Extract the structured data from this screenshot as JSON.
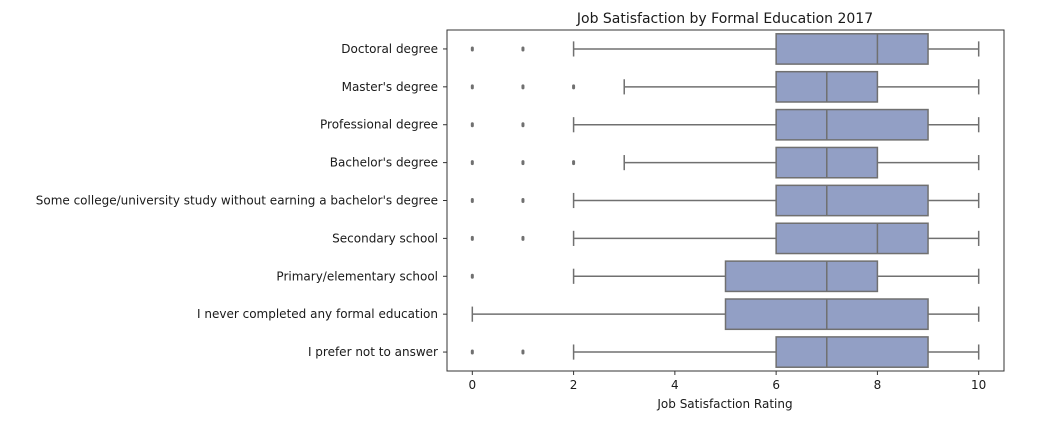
{
  "chart_data": {
    "type": "box",
    "title": "Job Satisfaction by Formal Education 2017",
    "xlabel": "Job Satisfaction Rating",
    "ylabel": "",
    "xlim": [
      -0.5,
      10.5
    ],
    "xticks": [
      0,
      2,
      4,
      6,
      8,
      10
    ],
    "grid": false,
    "colors": {
      "box": "#929fc5",
      "line": "#707070"
    },
    "categories": [
      "Doctoral degree",
      "Master's degree",
      "Professional degree",
      "Bachelor's degree",
      "Some college/university study without earning a bachelor's degree",
      "Secondary school",
      "Primary/elementary school",
      "I never completed any formal education",
      "I prefer not to answer"
    ],
    "boxes": [
      {
        "whisker_low": 2,
        "q1": 6,
        "median": 8,
        "q3": 9,
        "whisker_high": 10,
        "outliers": [
          0,
          1
        ]
      },
      {
        "whisker_low": 3,
        "q1": 6,
        "median": 7,
        "q3": 8,
        "whisker_high": 10,
        "outliers": [
          0,
          1,
          2
        ]
      },
      {
        "whisker_low": 2,
        "q1": 6,
        "median": 7,
        "q3": 9,
        "whisker_high": 10,
        "outliers": [
          0,
          1
        ]
      },
      {
        "whisker_low": 3,
        "q1": 6,
        "median": 7,
        "q3": 8,
        "whisker_high": 10,
        "outliers": [
          0,
          1,
          2
        ]
      },
      {
        "whisker_low": 2,
        "q1": 6,
        "median": 7,
        "q3": 9,
        "whisker_high": 10,
        "outliers": [
          0,
          1
        ]
      },
      {
        "whisker_low": 2,
        "q1": 6,
        "median": 8,
        "q3": 9,
        "whisker_high": 10,
        "outliers": [
          0,
          1
        ]
      },
      {
        "whisker_low": 2,
        "q1": 5,
        "median": 7,
        "q3": 8,
        "whisker_high": 10,
        "outliers": [
          0
        ]
      },
      {
        "whisker_low": 0,
        "q1": 5,
        "median": 7,
        "q3": 9,
        "whisker_high": 10,
        "outliers": []
      },
      {
        "whisker_low": 2,
        "q1": 6,
        "median": 7,
        "q3": 9,
        "whisker_high": 10,
        "outliers": [
          0,
          1
        ]
      }
    ]
  }
}
